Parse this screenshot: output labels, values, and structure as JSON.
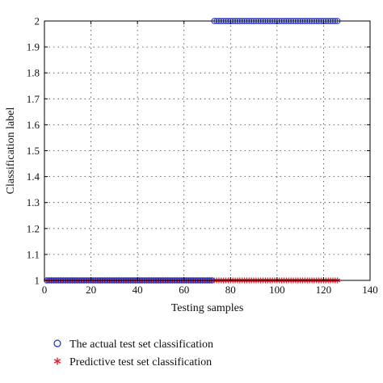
{
  "chart_data": {
    "type": "scatter",
    "xlabel": "Testing samples",
    "ylabel": "Classification label",
    "xlim": [
      0,
      140
    ],
    "ylim": [
      1,
      2
    ],
    "x_ticks": [
      0,
      20,
      40,
      60,
      80,
      100,
      120,
      140
    ],
    "y_ticks": [
      1,
      1.1,
      1.2,
      1.3,
      1.4,
      1.5,
      1.6,
      1.7,
      1.8,
      1.9,
      2
    ],
    "grid": true,
    "legend_position": "bottom",
    "series": [
      {
        "name": "The actual test set classification",
        "marker": "circle",
        "color": "#1f2fbf",
        "segments": [
          {
            "x_from": 1,
            "x_to": 72,
            "y": 1
          },
          {
            "x_from": 73,
            "x_to": 126,
            "y": 2
          }
        ]
      },
      {
        "name": "Predictive test set classification",
        "marker": "asterisk",
        "color": "#e0202a",
        "segments": [
          {
            "x_from": 1,
            "x_to": 126,
            "y": 1
          }
        ]
      }
    ]
  },
  "legend": [
    {
      "label": "The actual test set classification",
      "marker": "circle",
      "color": "#1f2fbf"
    },
    {
      "label": "Predictive test set classification",
      "marker": "asterisk",
      "color": "#e0202a"
    }
  ]
}
